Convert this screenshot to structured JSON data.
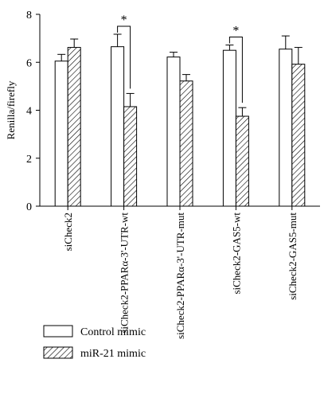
{
  "chart_data": {
    "type": "bar",
    "categories": [
      "siCheck2",
      "siCheck2-PPARα-3'-UTR-wt",
      "siCheck2-PPARα-3'-UTR-mut",
      "siCheck2-GAS5-wt",
      "siCheck2-GAS5-mut"
    ],
    "series": [
      {
        "name": "Control mimic",
        "pattern": "open",
        "values": [
          6.05,
          6.65,
          6.22,
          6.5,
          6.55
        ],
        "errors": [
          0.28,
          0.52,
          0.2,
          0.22,
          0.55
        ]
      },
      {
        "name": "miR-21 mimic",
        "pattern": "hatched",
        "values": [
          6.62,
          4.15,
          5.22,
          3.75,
          5.92
        ],
        "errors": [
          0.35,
          0.55,
          0.27,
          0.36,
          0.7
        ]
      }
    ],
    "ylabel": "Renilla/firefly",
    "xlabel": "",
    "title": "",
    "ylim": [
      0,
      8
    ],
    "yticks": [
      0,
      2,
      4,
      6,
      8
    ],
    "grid": false,
    "legend_position": "bottom",
    "significance": [
      {
        "category_index": 1,
        "label": "*"
      },
      {
        "category_index": 3,
        "label": "*"
      }
    ]
  }
}
